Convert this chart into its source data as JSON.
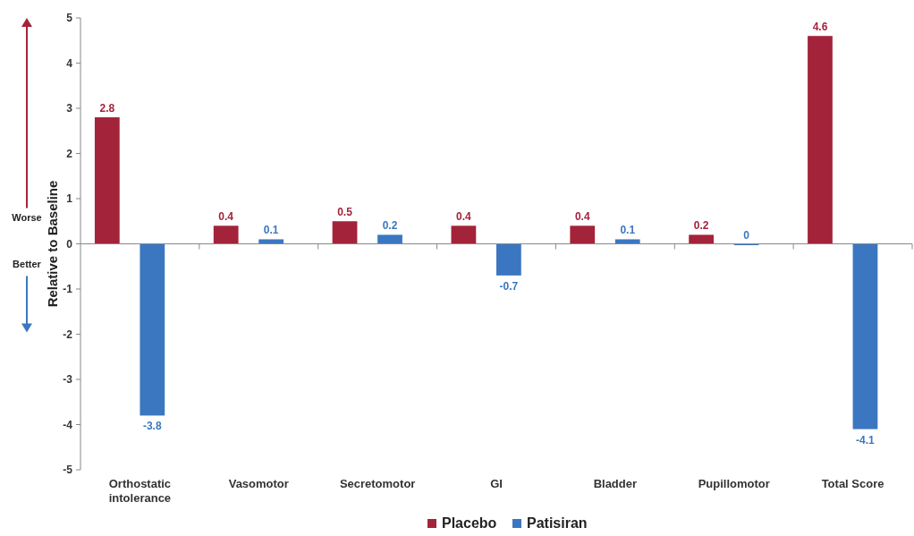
{
  "chart_data": {
    "type": "bar",
    "ylabel": "Relative to Baseline",
    "categories": [
      "Orthostatic intolerance",
      "Vasomotor",
      "Secretomotor",
      "GI",
      "Bladder",
      "Pupillomotor",
      "Total Score"
    ],
    "series": [
      {
        "name": "Placebo",
        "color": "#a3233a",
        "values": [
          2.8,
          0.4,
          0.5,
          0.4,
          0.4,
          0.2,
          4.6
        ]
      },
      {
        "name": "Patisiran",
        "color": "#3b77c0",
        "values": [
          -3.8,
          0.1,
          0.2,
          -0.7,
          0.1,
          0,
          -4.1
        ]
      }
    ],
    "ylim": [
      -5,
      5
    ],
    "yticks": [
      -5,
      -4,
      -3,
      -2,
      -1,
      0,
      1,
      2,
      3,
      4,
      5
    ],
    "data_labels": true,
    "legend": "bottom",
    "annotations": [
      "Worse",
      "Better"
    ]
  }
}
